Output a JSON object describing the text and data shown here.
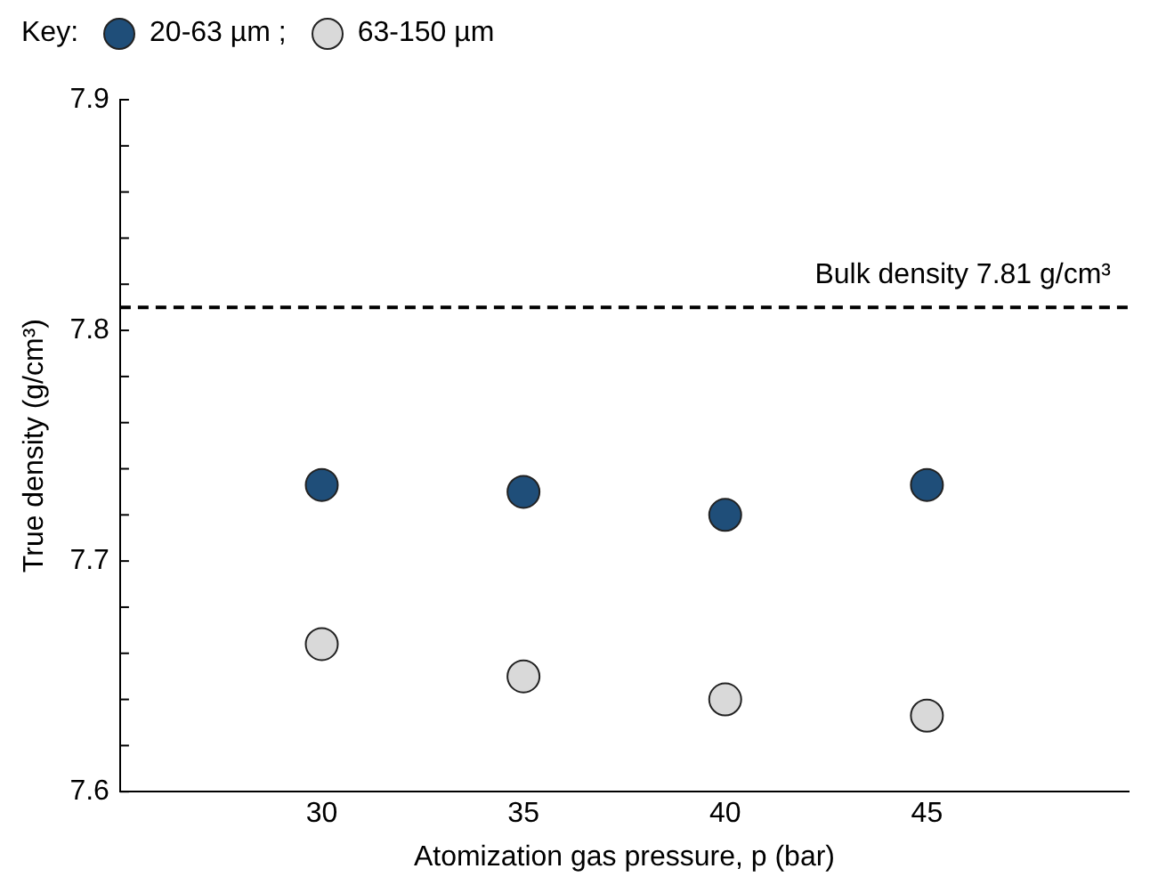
{
  "chart_data": {
    "type": "scatter",
    "xlabel": "Atomization gas pressure, p (bar)",
    "ylabel": "True density (g/cm³)",
    "legend_title": "Key:",
    "legend": "top left",
    "marker": "circle",
    "grid": false,
    "x": [
      30,
      35,
      40,
      45
    ],
    "series": [
      {
        "name": "20-63 µm ;",
        "color": "#1f4e79",
        "values": [
          7.733,
          7.73,
          7.72,
          7.733
        ]
      },
      {
        "name": "63-150 µm",
        "color": "#d9d9d9",
        "values": [
          7.664,
          7.65,
          7.64,
          7.633
        ]
      }
    ],
    "xlim": [
      25,
      50
    ],
    "xticks": [
      30,
      35,
      40,
      45
    ],
    "ylim": [
      7.6,
      7.9
    ],
    "yticks": [
      7.6,
      {
        "value": 7.62,
        "label": null
      },
      {
        "value": 7.64,
        "label": null
      },
      {
        "value": 7.66,
        "label": null
      },
      {
        "value": 7.68,
        "label": null
      },
      7.7,
      {
        "value": 7.72,
        "label": null
      },
      {
        "value": 7.74,
        "label": null
      },
      {
        "value": 7.76,
        "label": null
      },
      {
        "value": 7.78,
        "label": null
      },
      7.8,
      {
        "value": 7.82,
        "label": null
      },
      {
        "value": 7.84,
        "label": null
      },
      {
        "value": 7.86,
        "label": null
      },
      {
        "value": 7.88,
        "label": null
      },
      7.9
    ],
    "ref_lines": [
      {
        "axis": "y",
        "value": 7.81,
        "label": "Bulk density 7.81 g/cm³",
        "color": "#000000",
        "line_style": "dashed"
      }
    ]
  }
}
